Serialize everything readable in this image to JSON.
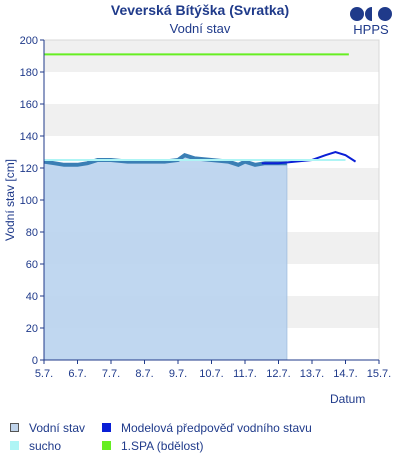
{
  "header": {
    "title": "Veverská Bítýška (Svratka)",
    "subtitle": "Vodní stav",
    "logo_text": "HPPS"
  },
  "chart_data": {
    "type": "line",
    "title": "Veverská Bítýška (Svratka)",
    "subtitle": "Vodní stav",
    "xlabel": "Datum",
    "ylabel": "Vodní stav [cm]",
    "ylim": [
      0,
      200
    ],
    "yticks": [
      0,
      20,
      40,
      60,
      80,
      100,
      120,
      140,
      160,
      180,
      200
    ],
    "xlim": [
      0,
      10
    ],
    "xticks": [
      0,
      1,
      2,
      3,
      4,
      5,
      6,
      7,
      8,
      9,
      10
    ],
    "xtick_labels": [
      "5.7.",
      "6.7.",
      "7.7.",
      "8.7.",
      "9.7.",
      "10.7.",
      "11.7.",
      "12.7.",
      "13.7.",
      "14.7.",
      "15.7."
    ],
    "grid": "horizontal bands",
    "legend_position": "bottom",
    "series": [
      {
        "name": "Vodní stav",
        "kind": "area",
        "color": "#3a7fb5",
        "fill": "#b9d3ee",
        "x": [
          0,
          0.3,
          0.6,
          1.0,
          1.3,
          1.6,
          2.0,
          2.5,
          3.0,
          3.6,
          4.0,
          4.2,
          4.5,
          5.0,
          5.5,
          5.8,
          6.0,
          6.3,
          6.6,
          7.0,
          7.25
        ],
        "y": [
          124,
          123,
          122,
          122,
          123,
          125,
          125,
          124,
          124,
          124,
          125,
          128,
          126,
          125,
          124,
          122,
          124,
          122,
          123,
          123,
          123
        ]
      },
      {
        "name": "Modelová předpověď vodního stavu",
        "kind": "line",
        "color": "#0a1fd6",
        "x": [
          6.5,
          7.0,
          7.5,
          8.0,
          8.4,
          8.7,
          9.0,
          9.3
        ],
        "y": [
          123,
          123,
          124,
          125,
          128,
          130,
          128,
          124
        ]
      },
      {
        "name": "sucho",
        "kind": "line",
        "color": "#aef5f5",
        "x": [
          0,
          9
        ],
        "y": [
          125,
          125
        ]
      },
      {
        "name": "1.SPA (bdělost)",
        "kind": "line",
        "color": "#66ee22",
        "x": [
          0,
          9.1
        ],
        "y": [
          191,
          191
        ]
      }
    ]
  },
  "legend": [
    {
      "label": "Vodní stav",
      "color": "#bfd3ea",
      "border": "#555555"
    },
    {
      "label": "Modelová předpověď vodního stavu",
      "color": "#0a1fd6",
      "border": "#0a1fd6"
    },
    {
      "label": "sucho",
      "color": "#aef5f5",
      "border": "#aef5f5"
    },
    {
      "label": "1.SPA (bdělost)",
      "color": "#66ee22",
      "border": "#66ee22"
    }
  ]
}
